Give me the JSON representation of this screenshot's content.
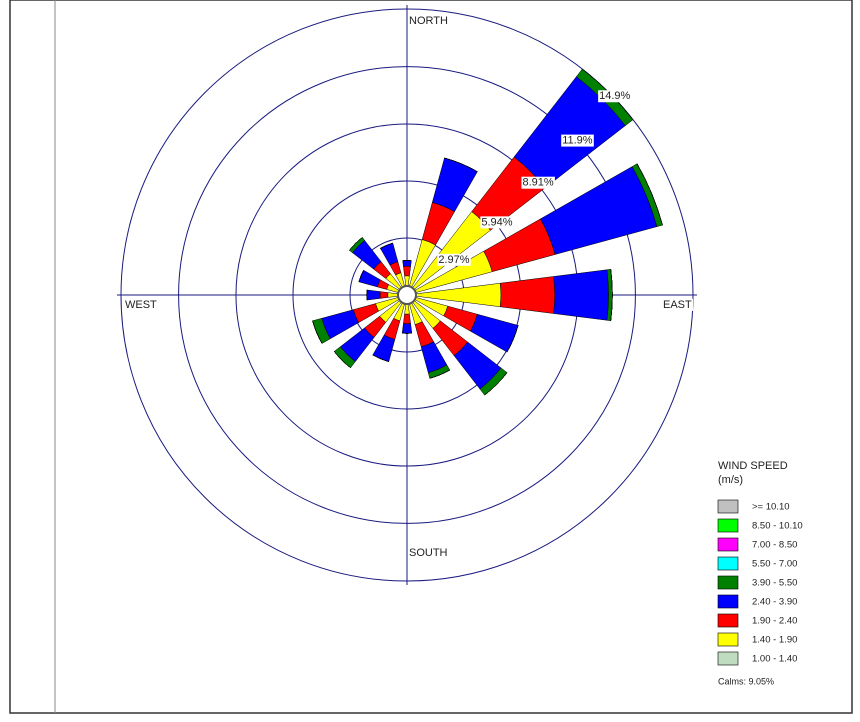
{
  "chart_data": {
    "type": "windrose",
    "direction_labels": [
      "NORTH",
      "EAST",
      "SOUTH",
      "WEST"
    ],
    "categories": [
      null,
      null,
      null,
      null,
      null,
      null,
      null,
      null,
      null,
      null,
      null,
      null,
      null,
      null,
      null,
      null
    ],
    "rlim": [
      0,
      14.9
    ],
    "rticks": [
      {
        "value": 2.97,
        "label": "2.97%"
      },
      {
        "value": 5.94,
        "label": "5.94%"
      },
      {
        "value": 8.91,
        "label": "8.91%"
      },
      {
        "value": 11.9,
        "label": "11.9%"
      },
      {
        "value": 14.9,
        "label": "14.9%"
      }
    ],
    "legend_title": [
      "WIND SPEED",
      "(m/s)"
    ],
    "calms": "Calms: 9.05%",
    "series": [
      {
        "name": "1.00 - 1.40",
        "color": "#c0dcc0",
        "values": [
          0.4,
          0.4,
          0.5,
          0.4,
          0.4,
          0.4,
          0.4,
          0.4,
          0.4,
          0.4,
          0.4,
          0.4,
          0.4,
          0.4,
          0.4,
          0.4
        ]
      },
      {
        "name": "1.40 - 1.90",
        "color": "#ffff00",
        "values": [
          0.6,
          2.6,
          5.0,
          4.2,
          4.5,
          1.8,
          1.8,
          1.2,
          0.6,
          1.0,
          1.4,
          1.3,
          0.6,
          0.7,
          1.0,
          0.8
        ]
      },
      {
        "name": "1.90 - 2.40",
        "color": "#ff0000",
        "values": [
          0.5,
          2.0,
          3.6,
          3.4,
          2.8,
          1.6,
          1.8,
          1.2,
          0.5,
          1.0,
          1.0,
          1.2,
          0.4,
          0.5,
          0.8,
          0.6
        ]
      },
      {
        "name": "2.40 - 3.90",
        "color": "#0000ff",
        "values": [
          0.3,
          2.4,
          5.3,
          5.5,
          2.8,
          2.2,
          2.2,
          1.4,
          0.5,
          1.2,
          1.6,
          1.7,
          0.7,
          1.0,
          1.4,
          1.0
        ]
      },
      {
        "name": "3.90 - 5.50",
        "color": "#008000",
        "values": [
          0,
          0,
          0.5,
          0.3,
          0.2,
          0,
          0.4,
          0.3,
          0,
          0,
          0.4,
          0.5,
          0,
          0,
          0.2,
          0
        ]
      },
      {
        "name": "5.50 - 7.00",
        "color": "#00ffff",
        "values": [
          0,
          0,
          0,
          0,
          0,
          0,
          0,
          0,
          0,
          0,
          0,
          0,
          0,
          0,
          0,
          0
        ]
      },
      {
        "name": "7.00 - 8.50",
        "color": "#ff00ff",
        "values": [
          0,
          0,
          0,
          0,
          0,
          0,
          0,
          0,
          0,
          0,
          0,
          0,
          0,
          0,
          0,
          0
        ]
      },
      {
        "name": "8.50 - 10.10",
        "color": "#00ff00",
        "values": [
          0,
          0,
          0,
          0,
          0,
          0,
          0,
          0,
          0,
          0,
          0,
          0,
          0,
          0,
          0,
          0
        ]
      },
      {
        "name": ">= 10.10",
        "color": "#c0c0c0",
        "values": [
          0,
          0,
          0,
          0,
          0,
          0,
          0,
          0,
          0,
          0,
          0,
          0,
          0,
          0,
          0,
          0
        ]
      }
    ]
  }
}
